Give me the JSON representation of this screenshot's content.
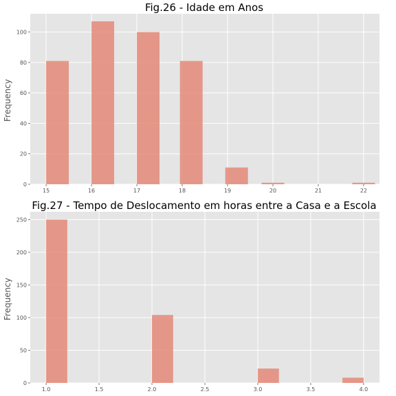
{
  "chart_data": [
    {
      "type": "bar",
      "title": "Fig.26 - Idade em Anos",
      "xlabel": "",
      "ylabel": "Frequency",
      "bar_color": "#e48a78",
      "background_color": "#e5e5e5",
      "grid": true,
      "xlim": [
        14.65,
        22.35
      ],
      "ylim": [
        0,
        112
      ],
      "xticks": [
        "15",
        "16",
        "17",
        "18",
        "19",
        "20",
        "21",
        "22"
      ],
      "yticks": [
        "0",
        "20",
        "40",
        "60",
        "80",
        "100"
      ],
      "bar_width": 0.5,
      "x": [
        15.25,
        16.25,
        17.25,
        18.2,
        19.2,
        20.0,
        22.0
      ],
      "values": [
        81,
        107,
        100,
        81,
        11,
        1,
        1
      ]
    },
    {
      "type": "bar",
      "title": "Fig.27 - Tempo de Deslocamento em horas entre a Casa e a Escola",
      "xlabel": "",
      "ylabel": "Frequency",
      "bar_color": "#e48a78",
      "background_color": "#e5e5e5",
      "grid": true,
      "xlim": [
        0.85,
        4.15
      ],
      "ylim": [
        0,
        262
      ],
      "xticks": [
        "1.0",
        "1.5",
        "2.0",
        "2.5",
        "3.0",
        "3.5",
        "4.0"
      ],
      "yticks": [
        "0",
        "50",
        "100",
        "150",
        "200",
        "250"
      ],
      "bar_width": 0.2,
      "x": [
        1.1,
        2.1,
        3.1,
        3.9
      ],
      "values": [
        250,
        104,
        22,
        8
      ]
    }
  ]
}
